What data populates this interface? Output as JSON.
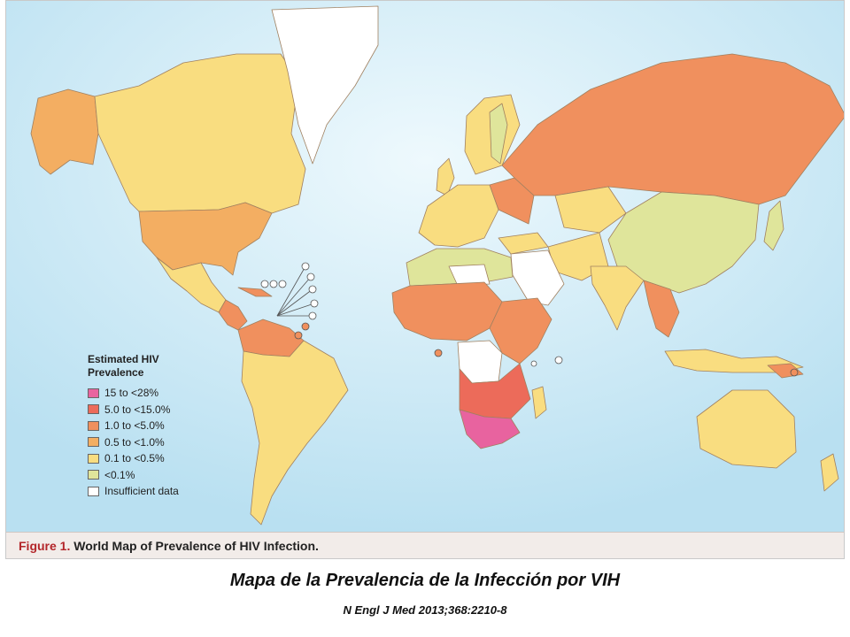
{
  "figure": {
    "label": "Figure 1.",
    "title": "World Map of Prevalence of HIV Infection."
  },
  "legend": {
    "title": "Estimated HIV\nPrevalence",
    "items": [
      {
        "label": "15 to <28%",
        "color": "#e8639f"
      },
      {
        "label": "5.0 to <15.0%",
        "color": "#ec6b5a"
      },
      {
        "label": "1.0 to <5.0%",
        "color": "#f0905e"
      },
      {
        "label": "0.5 to <1.0%",
        "color": "#f3ae62"
      },
      {
        "label": "0.1 to <0.5%",
        "color": "#f9dd80"
      },
      {
        "label": "<0.1%",
        "color": "#dfe59b"
      },
      {
        "label": "Insufficient data",
        "color": "#ffffff"
      }
    ]
  },
  "colors": {
    "ocean": "#bfe3f3",
    "ocean_light": "#e8f6fc",
    "border": "#a08060",
    "caption_band": "#f2ece9",
    "figure_label": "#b3262a"
  },
  "spanish_title": "Mapa de la Prevalencia de la Infección por VIH",
  "citation": "N Engl J Med 2013;368:2210-8"
}
